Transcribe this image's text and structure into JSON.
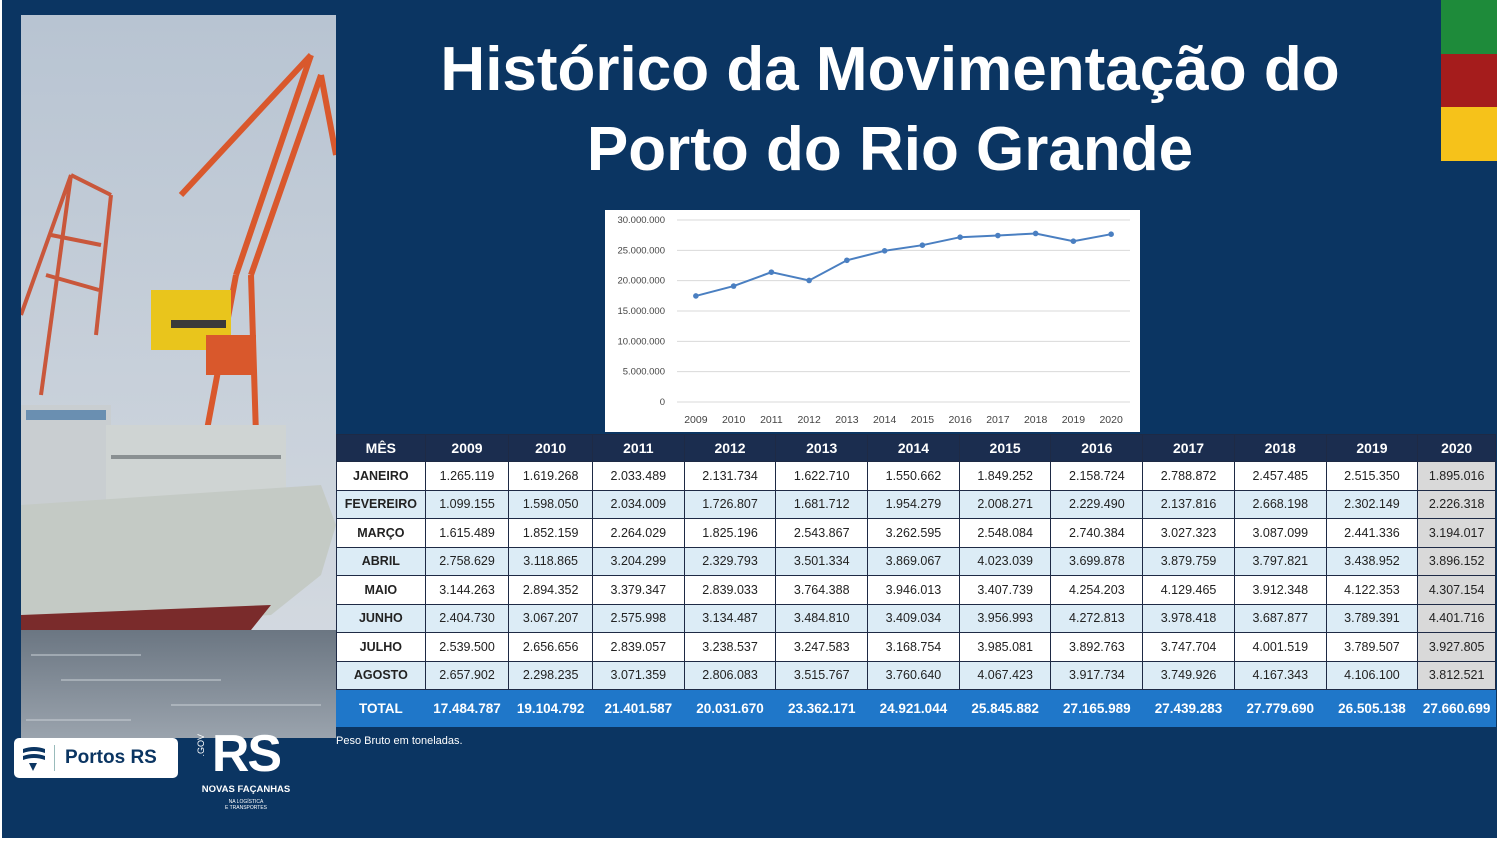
{
  "title": {
    "line1": "Histórico da Movimentação do",
    "line2": "Porto do Rio Grande"
  },
  "colors": {
    "background": "#0b3562",
    "flag_green": "#1e8b3a",
    "flag_red": "#a51c1c",
    "flag_yellow": "#f6c21a",
    "line_series": "#4a7fc1",
    "table_header": "#1b2d4f",
    "table_total": "#1f77c9"
  },
  "chart_data": {
    "type": "line",
    "x": [
      "2009",
      "2010",
      "2011",
      "2012",
      "2013",
      "2014",
      "2015",
      "2016",
      "2017",
      "2018",
      "2019",
      "2020"
    ],
    "values": [
      17484787,
      19104792,
      21401587,
      20031670,
      23362171,
      24921044,
      25845882,
      27165989,
      27439283,
      27779690,
      26505138,
      27660699
    ],
    "y_ticks": [
      "0",
      "5.000.000",
      "10.000.000",
      "15.000.000",
      "20.000.000",
      "25.000.000",
      "30.000.000"
    ],
    "ylim": [
      0,
      30000000
    ],
    "grid": true,
    "title": "",
    "xlabel": "",
    "ylabel": ""
  },
  "table": {
    "headers": [
      "MÊS",
      "2009",
      "2010",
      "2011",
      "2012",
      "2013",
      "2014",
      "2015",
      "2016",
      "2017",
      "2018",
      "2019",
      "2020"
    ],
    "rows": [
      [
        "JANEIRO",
        "1.265.119",
        "1.619.268",
        "2.033.489",
        "2.131.734",
        "1.622.710",
        "1.550.662",
        "1.849.252",
        "2.158.724",
        "2.788.872",
        "2.457.485",
        "2.515.350",
        "1.895.016"
      ],
      [
        "FEVEREIRO",
        "1.099.155",
        "1.598.050",
        "2.034.009",
        "1.726.807",
        "1.681.712",
        "1.954.279",
        "2.008.271",
        "2.229.490",
        "2.137.816",
        "2.668.198",
        "2.302.149",
        "2.226.318"
      ],
      [
        "MARÇO",
        "1.615.489",
        "1.852.159",
        "2.264.029",
        "1.825.196",
        "2.543.867",
        "3.262.595",
        "2.548.084",
        "2.740.384",
        "3.027.323",
        "3.087.099",
        "2.441.336",
        "3.194.017"
      ],
      [
        "ABRIL",
        "2.758.629",
        "3.118.865",
        "3.204.299",
        "2.329.793",
        "3.501.334",
        "3.869.067",
        "4.023.039",
        "3.699.878",
        "3.879.759",
        "3.797.821",
        "3.438.952",
        "3.896.152"
      ],
      [
        "MAIO",
        "3.144.263",
        "2.894.352",
        "3.379.347",
        "2.839.033",
        "3.764.388",
        "3.946.013",
        "3.407.739",
        "4.254.203",
        "4.129.465",
        "3.912.348",
        "4.122.353",
        "4.307.154"
      ],
      [
        "JUNHO",
        "2.404.730",
        "3.067.207",
        "2.575.998",
        "3.134.487",
        "3.484.810",
        "3.409.034",
        "3.956.993",
        "4.272.813",
        "3.978.418",
        "3.687.877",
        "3.789.391",
        "4.401.716"
      ],
      [
        "JULHO",
        "2.539.500",
        "2.656.656",
        "2.839.057",
        "3.238.537",
        "3.247.583",
        "3.168.754",
        "3.985.081",
        "3.892.763",
        "3.747.704",
        "4.001.519",
        "3.789.507",
        "3.927.805"
      ],
      [
        "AGOSTO",
        "2.657.902",
        "2.298.235",
        "3.071.359",
        "2.806.083",
        "3.515.767",
        "3.760.640",
        "4.067.423",
        "3.917.734",
        "3.749.926",
        "4.167.343",
        "4.106.100",
        "3.812.521"
      ]
    ],
    "total": [
      "TOTAL",
      "17.484.787",
      "19.104.792",
      "21.401.587",
      "20.031.670",
      "23.362.171",
      "24.921.044",
      "25.845.882",
      "27.165.989",
      "27.439.283",
      "27.779.690",
      "26.505.138",
      "27.660.699"
    ]
  },
  "note": "Peso Bruto em toneladas.",
  "logos": {
    "portos_icon": "port-wave-icon",
    "portos_text": "Portos RS",
    "rs_big": "RS",
    "rs_gov": ".GOV",
    "rs_slogan": "NOVAS FAÇANHAS",
    "rs_sub1": "NA LOGÍSTICA",
    "rs_sub2": "E TRANSPORTES"
  },
  "photo_icon": "ship-crane-photo"
}
